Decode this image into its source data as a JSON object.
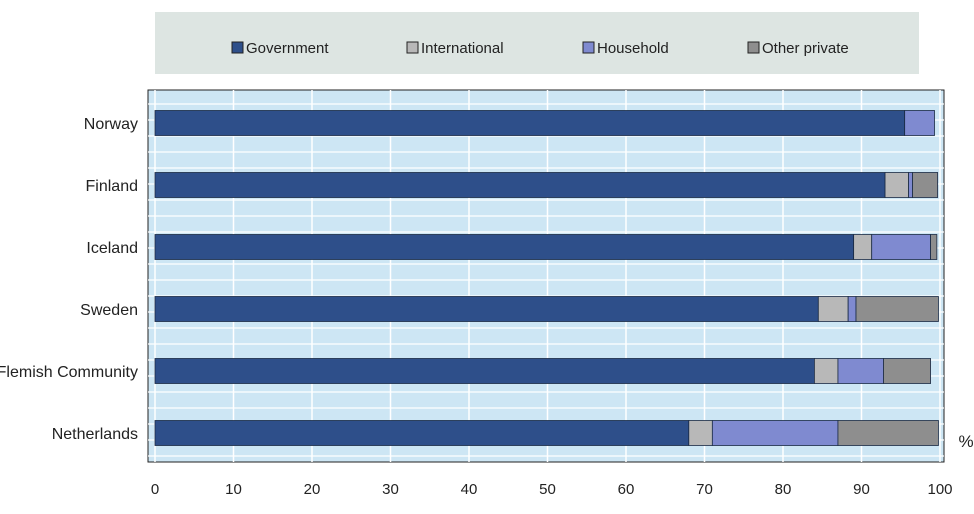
{
  "chart_data": {
    "type": "bar",
    "orientation": "horizontal",
    "stacked": true,
    "categories": [
      "Norway",
      "Finland",
      "Iceland",
      "Sweden",
      "Flemish Community",
      "Netherlands"
    ],
    "series": [
      {
        "name": "Government",
        "color": "#2e4f8a",
        "values": [
          95.5,
          93,
          89,
          84.5,
          84,
          68
        ]
      },
      {
        "name": "International",
        "color": "#b8b8b8",
        "values": [
          0,
          3,
          2.3,
          3.8,
          3,
          3
        ]
      },
      {
        "name": "Household",
        "color": "#7f8ad0",
        "values": [
          3.8,
          0.5,
          7.5,
          1,
          5.8,
          16
        ]
      },
      {
        "name": "Other private",
        "color": "#8e8e8e",
        "values": [
          0,
          3.2,
          0.8,
          10.5,
          6,
          12.8
        ]
      }
    ],
    "unit_label": "%",
    "xticks": [
      "0",
      "10",
      "20",
      "30",
      "40",
      "50",
      "60",
      "70",
      "80",
      "90",
      "100"
    ],
    "xlim": [
      0,
      100
    ],
    "grid": true,
    "legend_position": "top"
  }
}
